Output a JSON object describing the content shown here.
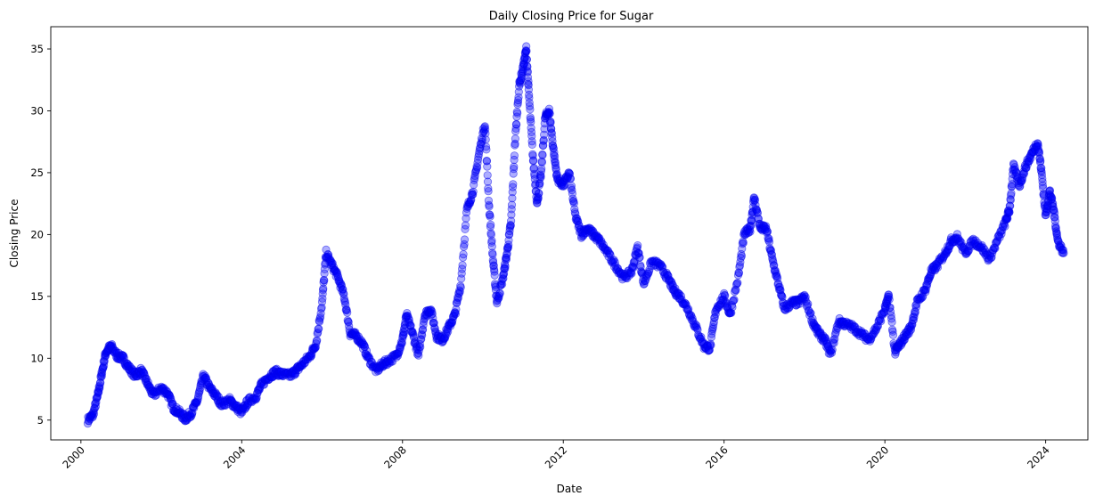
{
  "chart_data": {
    "type": "scatter",
    "title": "Daily Closing Price for Sugar",
    "xlabel": "Date",
    "ylabel": "Closing Price",
    "xlim": [
      1999.25,
      2025.05
    ],
    "ylim": [
      3.4,
      36.8
    ],
    "xticks": [
      2000,
      2004,
      2008,
      2012,
      2016,
      2020,
      2024
    ],
    "xtick_labels": [
      "2000",
      "2004",
      "2008",
      "2012",
      "2016",
      "2020",
      "2024"
    ],
    "yticks": [
      5,
      10,
      15,
      20,
      25,
      30,
      35
    ],
    "ytick_labels": [
      "5",
      "10",
      "15",
      "20",
      "25",
      "30",
      "35"
    ],
    "grid": false,
    "legend": "none",
    "marker_color": "#0000ff",
    "series": [
      {
        "points": [
          [
            2000.17,
            5.0
          ],
          [
            2000.3,
            5.4
          ],
          [
            2000.42,
            7.0
          ],
          [
            2000.52,
            8.8
          ],
          [
            2000.62,
            10.5
          ],
          [
            2000.75,
            11.0
          ],
          [
            2000.9,
            10.2
          ],
          [
            2001.05,
            10.0
          ],
          [
            2001.2,
            9.2
          ],
          [
            2001.35,
            8.6
          ],
          [
            2001.5,
            9.0
          ],
          [
            2001.65,
            8.0
          ],
          [
            2001.8,
            7.0
          ],
          [
            2002.0,
            7.6
          ],
          [
            2002.15,
            7.2
          ],
          [
            2002.3,
            6.0
          ],
          [
            2002.45,
            5.6
          ],
          [
            2002.6,
            5.1
          ],
          [
            2002.75,
            5.6
          ],
          [
            2002.9,
            6.6
          ],
          [
            2003.05,
            8.6
          ],
          [
            2003.2,
            7.6
          ],
          [
            2003.35,
            7.0
          ],
          [
            2003.5,
            6.3
          ],
          [
            2003.7,
            6.6
          ],
          [
            2003.85,
            6.1
          ],
          [
            2004.0,
            5.6
          ],
          [
            2004.15,
            6.5
          ],
          [
            2004.35,
            6.9
          ],
          [
            2004.5,
            7.9
          ],
          [
            2004.7,
            8.6
          ],
          [
            2004.85,
            8.9
          ],
          [
            2005.0,
            8.7
          ],
          [
            2005.2,
            8.6
          ],
          [
            2005.35,
            9.0
          ],
          [
            2005.5,
            9.5
          ],
          [
            2005.7,
            10.2
          ],
          [
            2005.85,
            11.2
          ],
          [
            2006.0,
            14.5
          ],
          [
            2006.1,
            18.5
          ],
          [
            2006.25,
            17.5
          ],
          [
            2006.4,
            16.5
          ],
          [
            2006.55,
            15.0
          ],
          [
            2006.7,
            12.0
          ],
          [
            2006.85,
            11.8
          ],
          [
            2007.0,
            11.2
          ],
          [
            2007.15,
            10.0
          ],
          [
            2007.35,
            9.0
          ],
          [
            2007.5,
            9.5
          ],
          [
            2007.65,
            9.8
          ],
          [
            2007.85,
            10.2
          ],
          [
            2008.0,
            11.5
          ],
          [
            2008.1,
            13.5
          ],
          [
            2008.25,
            12.0
          ],
          [
            2008.4,
            10.2
          ],
          [
            2008.55,
            13.5
          ],
          [
            2008.7,
            14.0
          ],
          [
            2008.85,
            11.8
          ],
          [
            2009.0,
            11.5
          ],
          [
            2009.15,
            12.5
          ],
          [
            2009.3,
            13.5
          ],
          [
            2009.45,
            16.0
          ],
          [
            2009.6,
            22.0
          ],
          [
            2009.75,
            23.5
          ],
          [
            2009.9,
            26.5
          ],
          [
            2010.05,
            29.0
          ],
          [
            2010.15,
            22.5
          ],
          [
            2010.25,
            18.0
          ],
          [
            2010.35,
            14.5
          ],
          [
            2010.5,
            16.5
          ],
          [
            2010.6,
            18.5
          ],
          [
            2010.7,
            21.0
          ],
          [
            2010.8,
            27.5
          ],
          [
            2010.9,
            32.0
          ],
          [
            2011.0,
            33.5
          ],
          [
            2011.08,
            35.0
          ],
          [
            2011.15,
            31.0
          ],
          [
            2011.25,
            26.0
          ],
          [
            2011.35,
            22.5
          ],
          [
            2011.45,
            25.0
          ],
          [
            2011.55,
            29.5
          ],
          [
            2011.65,
            30.0
          ],
          [
            2011.75,
            27.0
          ],
          [
            2011.85,
            24.5
          ],
          [
            2012.0,
            24.0
          ],
          [
            2012.15,
            25.0
          ],
          [
            2012.3,
            21.5
          ],
          [
            2012.45,
            20.0
          ],
          [
            2012.6,
            20.5
          ],
          [
            2012.75,
            20.0
          ],
          [
            2012.9,
            19.5
          ],
          [
            2013.1,
            18.5
          ],
          [
            2013.3,
            17.5
          ],
          [
            2013.5,
            16.5
          ],
          [
            2013.7,
            17.0
          ],
          [
            2013.85,
            19.0
          ],
          [
            2014.0,
            16.0
          ],
          [
            2014.2,
            17.8
          ],
          [
            2014.4,
            17.5
          ],
          [
            2014.6,
            16.5
          ],
          [
            2014.75,
            15.5
          ],
          [
            2014.9,
            15.0
          ],
          [
            2015.1,
            14.0
          ],
          [
            2015.3,
            12.5
          ],
          [
            2015.5,
            11.0
          ],
          [
            2015.65,
            10.8
          ],
          [
            2015.8,
            14.0
          ],
          [
            2016.0,
            15.0
          ],
          [
            2016.15,
            13.5
          ],
          [
            2016.35,
            16.5
          ],
          [
            2016.5,
            20.0
          ],
          [
            2016.65,
            20.5
          ],
          [
            2016.75,
            23.0
          ],
          [
            2016.9,
            20.5
          ],
          [
            2017.05,
            20.5
          ],
          [
            2017.2,
            18.0
          ],
          [
            2017.35,
            16.0
          ],
          [
            2017.5,
            14.0
          ],
          [
            2017.7,
            14.5
          ],
          [
            2017.85,
            14.5
          ],
          [
            2018.0,
            15.0
          ],
          [
            2018.2,
            13.0
          ],
          [
            2018.35,
            12.0
          ],
          [
            2018.5,
            11.5
          ],
          [
            2018.65,
            10.3
          ],
          [
            2018.85,
            13.0
          ],
          [
            2019.0,
            12.8
          ],
          [
            2019.2,
            12.5
          ],
          [
            2019.4,
            12.0
          ],
          [
            2019.6,
            11.5
          ],
          [
            2019.8,
            12.5
          ],
          [
            2020.0,
            14.0
          ],
          [
            2020.1,
            15.0
          ],
          [
            2020.25,
            10.5
          ],
          [
            2020.35,
            11.0
          ],
          [
            2020.5,
            11.8
          ],
          [
            2020.65,
            12.5
          ],
          [
            2020.8,
            14.5
          ],
          [
            2021.0,
            15.5
          ],
          [
            2021.15,
            17.0
          ],
          [
            2021.3,
            17.5
          ],
          [
            2021.5,
            18.5
          ],
          [
            2021.65,
            19.5
          ],
          [
            2021.8,
            19.8
          ],
          [
            2022.0,
            18.5
          ],
          [
            2022.2,
            19.5
          ],
          [
            2022.4,
            19.0
          ],
          [
            2022.6,
            18.0
          ],
          [
            2022.8,
            19.5
          ],
          [
            2023.0,
            21.0
          ],
          [
            2023.1,
            22.0
          ],
          [
            2023.2,
            25.5
          ],
          [
            2023.35,
            24.0
          ],
          [
            2023.5,
            25.5
          ],
          [
            2023.65,
            26.5
          ],
          [
            2023.8,
            27.5
          ],
          [
            2023.9,
            25.0
          ],
          [
            2024.0,
            21.5
          ],
          [
            2024.1,
            23.5
          ],
          [
            2024.2,
            22.0
          ],
          [
            2024.3,
            19.5
          ],
          [
            2024.45,
            18.5
          ]
        ]
      }
    ]
  }
}
